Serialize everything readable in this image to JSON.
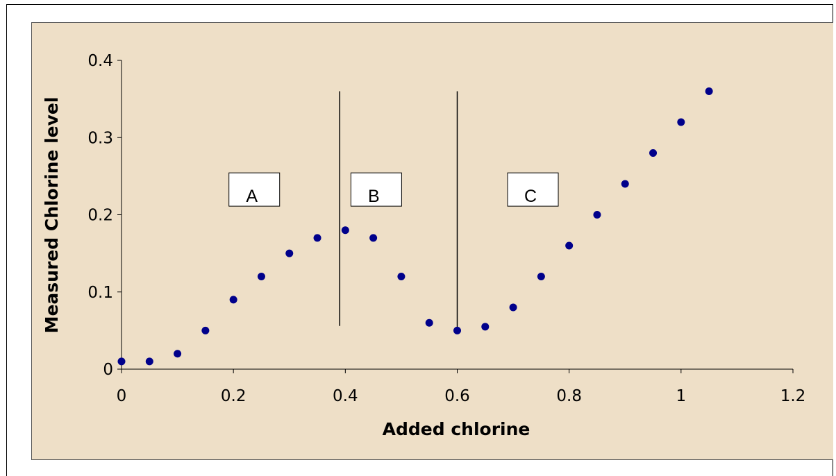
{
  "chart_data": {
    "type": "scatter",
    "title": "",
    "xlabel": "Added chlorine",
    "ylabel": "Measured Chlorine level",
    "xlim": [
      0,
      1.2
    ],
    "ylim": [
      0,
      0.4
    ],
    "x_ticks": [
      "0",
      "0.2",
      "0.4",
      "0.6",
      "0.8",
      "1",
      "1.2"
    ],
    "y_ticks": [
      "0",
      "0.1",
      "0.2",
      "0.3",
      "0.4"
    ],
    "grid": false,
    "legend": "none",
    "marker_color": "#00008b",
    "background_color": "#eedfc7",
    "series": [
      {
        "x": [
          0,
          0.05,
          0.1,
          0.15,
          0.2,
          0.25,
          0.3,
          0.35,
          0.4,
          0.45,
          0.5,
          0.55,
          0.6,
          0.65,
          0.7,
          0.75,
          0.8,
          0.85,
          0.9,
          0.95,
          1.0,
          1.05
        ],
        "y": [
          0.01,
          0.01,
          0.02,
          0.05,
          0.09,
          0.12,
          0.15,
          0.17,
          0.18,
          0.17,
          0.12,
          0.06,
          0.05,
          0.055,
          0.08,
          0.12,
          0.16,
          0.2,
          0.24,
          0.28,
          0.32,
          0.36
        ]
      }
    ],
    "dividers": [
      {
        "x": 0.39,
        "y_from": 0.056,
        "y_to": 0.36
      },
      {
        "x": 0.6,
        "y_from": 0.05,
        "y_to": 0.36
      }
    ],
    "regions": [
      {
        "label": "A",
        "x": 0.192,
        "y": 0.23
      },
      {
        "label": "B",
        "x": 0.41,
        "y": 0.23
      },
      {
        "label": "C",
        "x": 0.69,
        "y": 0.23
      }
    ]
  }
}
